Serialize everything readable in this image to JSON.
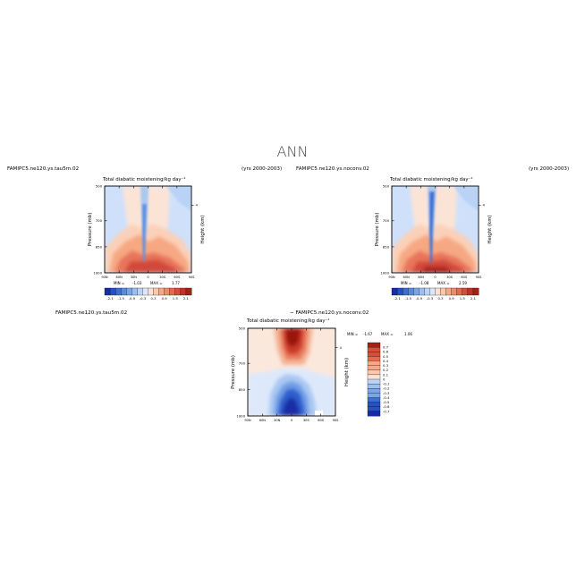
{
  "figure": {
    "title": "ANN"
  },
  "chart_data": [
    {
      "type": "heatmap",
      "case_label": "FAMIPC5.ne120.ys.tau5m.02",
      "years_label": "(yrs 2000-2003)",
      "title": "Total diabatic moistening/kg day⁻¹",
      "ylabel": "Pressure (mb)",
      "ylabel_right": "Height (km)",
      "x_ticks": [
        "90N",
        "60N",
        "30N",
        "0",
        "30S",
        "60S",
        "90S"
      ],
      "x_values": [
        90,
        60,
        30,
        0,
        -30,
        -60,
        -90
      ],
      "y_ticks": [
        "500",
        "700",
        "850",
        "1000"
      ],
      "y_values": [
        500,
        700,
        850,
        1000
      ],
      "right_ticks": [
        "4"
      ],
      "right_values": [
        4
      ],
      "min_label": "MIN =",
      "min": "-1.03",
      "max_label": "MAX =",
      "max": "1.77",
      "colorbar_labels": [
        "-2.1",
        "-1.5",
        "-0.9",
        "-0.3",
        "0.3",
        "0.9",
        "1.5",
        "2.1"
      ],
      "colorbar_levels": [
        -2.1,
        -1.8,
        -1.5,
        -1.2,
        -0.9,
        -0.6,
        -0.3,
        0.0,
        0.3,
        0.6,
        0.9,
        1.2,
        1.5,
        1.8,
        2.1
      ]
    },
    {
      "type": "heatmap",
      "case_label": "FAMIPC5.ne120.ys.noconv.02",
      "years_label": "(yrs 2000-2003)",
      "title": "Total diabatic moistening/kg day⁻¹",
      "ylabel": "Pressure (mb)",
      "ylabel_right": "Height (km)",
      "x_ticks": [
        "90N",
        "60N",
        "30N",
        "0",
        "30S",
        "60S",
        "90S"
      ],
      "x_values": [
        90,
        60,
        30,
        0,
        -30,
        -60,
        -90
      ],
      "y_ticks": [
        "500",
        "700",
        "850",
        "1000"
      ],
      "y_values": [
        500,
        700,
        850,
        1000
      ],
      "right_ticks": [
        "4"
      ],
      "right_values": [
        4
      ],
      "min_label": "MIN =",
      "min": "-1.08",
      "max_label": "MAX =",
      "max": "2.59",
      "colorbar_labels": [
        "-2.1",
        "-1.5",
        "-0.9",
        "-0.3",
        "0.3",
        "0.9",
        "1.5",
        "2.1"
      ],
      "colorbar_levels": [
        -2.1,
        -1.8,
        -1.5,
        -1.2,
        -0.9,
        -0.6,
        -0.3,
        0.0,
        0.3,
        0.6,
        0.9,
        1.2,
        1.5,
        1.8,
        2.1
      ]
    },
    {
      "type": "heatmap",
      "case_label": "FAMIPC5.ne120.ys.tau5m.02",
      "diff_label": "− FAMIPC5.ne120.ys.noconv.02",
      "title": "Total diabatic moistening/kg day⁻¹",
      "ylabel": "Pressure (mb)",
      "ylabel_right": "Height (km)",
      "x_ticks": [
        "90N",
        "60N",
        "30N",
        "0",
        "30S",
        "60S",
        "90S"
      ],
      "x_values": [
        90,
        60,
        30,
        0,
        -30,
        -60,
        -90
      ],
      "y_ticks": [
        "500",
        "700",
        "850",
        "1000"
      ],
      "y_values": [
        500,
        700,
        850,
        1000
      ],
      "right_ticks": [
        "4"
      ],
      "right_values": [
        4
      ],
      "min_label": "MIN =",
      "min": "-1.67",
      "max_label": "MAX =",
      "max": "1.06",
      "colorbar_labels": [
        "0.7",
        "0.6",
        "0.5",
        "0.4",
        "0.3",
        "0.2",
        "0.1",
        "0",
        "-0.1",
        "-0.2",
        "-0.3",
        "-0.4",
        "-0.5",
        "-0.6",
        "-0.7"
      ],
      "colorbar_levels": [
        0.7,
        0.6,
        0.5,
        0.4,
        0.3,
        0.2,
        0.1,
        0.0,
        -0.1,
        -0.2,
        -0.3,
        -0.4,
        -0.5,
        -0.6,
        -0.7
      ]
    }
  ]
}
